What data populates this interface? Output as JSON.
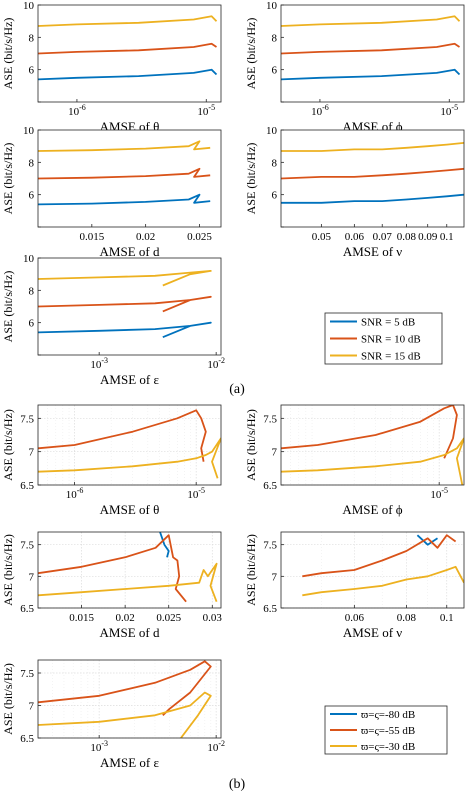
{
  "captions": {
    "a": "(a)",
    "b": "(b)"
  },
  "colors": {
    "blue": "#0072BD",
    "orange": "#D95319",
    "yellow": "#EDB120"
  },
  "chart_data": [
    {
      "type": "line",
      "panel": "a-theta",
      "ylabel": "ASE (bit/s/Hz)",
      "xlabel": "AMSE of θ",
      "xscale": "log",
      "xlim": [
        5e-07,
        1.3e-05
      ],
      "ylim": [
        4,
        10
      ],
      "xticks": [
        1e-06,
        1e-05
      ],
      "xticklabels": [
        "10^-6",
        "10^-5"
      ],
      "yticks": [
        4,
        6,
        8,
        10
      ],
      "yticklabels": [
        "",
        "6",
        "8",
        "10"
      ],
      "grid": false,
      "series": [
        {
          "color": "blue",
          "x": [
            5e-07,
            1e-06,
            3e-06,
            8e-06,
            1.1e-05,
            1.2e-05
          ],
          "y": [
            5.4,
            5.5,
            5.6,
            5.8,
            6.0,
            5.7
          ]
        },
        {
          "color": "orange",
          "x": [
            5e-07,
            1e-06,
            3e-06,
            8e-06,
            1.1e-05,
            1.2e-05
          ],
          "y": [
            7.0,
            7.1,
            7.2,
            7.4,
            7.6,
            7.4
          ]
        },
        {
          "color": "yellow",
          "x": [
            5e-07,
            1e-06,
            3e-06,
            8e-06,
            1.1e-05,
            1.2e-05
          ],
          "y": [
            8.7,
            8.8,
            8.9,
            9.1,
            9.3,
            9.0
          ]
        }
      ]
    },
    {
      "type": "line",
      "panel": "a-phi",
      "ylabel": "ASE (bit/s/Hz)",
      "xlabel": "AMSE of ϕ",
      "xscale": "log",
      "xlim": [
        5e-07,
        1.3e-05
      ],
      "ylim": [
        4,
        10
      ],
      "xticks": [
        1e-06,
        1e-05
      ],
      "xticklabels": [
        "10^-6",
        "10^-5"
      ],
      "yticks": [
        4,
        6,
        8,
        10
      ],
      "yticklabels": [
        "",
        "6",
        "8",
        "10"
      ],
      "grid": false,
      "series": [
        {
          "color": "blue",
          "x": [
            5e-07,
            1e-06,
            3e-06,
            8e-06,
            1.1e-05,
            1.2e-05
          ],
          "y": [
            5.4,
            5.5,
            5.6,
            5.8,
            6.0,
            5.7
          ]
        },
        {
          "color": "orange",
          "x": [
            5e-07,
            1e-06,
            3e-06,
            8e-06,
            1.1e-05,
            1.2e-05
          ],
          "y": [
            7.0,
            7.1,
            7.2,
            7.4,
            7.6,
            7.4
          ]
        },
        {
          "color": "yellow",
          "x": [
            5e-07,
            1e-06,
            3e-06,
            8e-06,
            1.1e-05,
            1.2e-05
          ],
          "y": [
            8.7,
            8.8,
            8.9,
            9.1,
            9.3,
            9.0
          ]
        }
      ]
    },
    {
      "type": "line",
      "panel": "a-d",
      "ylabel": "ASE (bit/s/Hz)",
      "xlabel": "AMSE of d",
      "xscale": "linear",
      "xlim": [
        0.01,
        0.027
      ],
      "ylim": [
        4,
        10
      ],
      "xticks": [
        0.015,
        0.02,
        0.025
      ],
      "xticklabels": [
        "0.015",
        "0.02",
        "0.025"
      ],
      "yticks": [
        4,
        6,
        8,
        10
      ],
      "yticklabels": [
        "",
        "6",
        "8",
        "10"
      ],
      "grid": false,
      "series": [
        {
          "color": "blue",
          "x": [
            0.01,
            0.015,
            0.02,
            0.024,
            0.025,
            0.0245,
            0.026
          ],
          "y": [
            5.4,
            5.45,
            5.55,
            5.7,
            6.0,
            5.5,
            5.6
          ]
        },
        {
          "color": "orange",
          "x": [
            0.01,
            0.015,
            0.02,
            0.024,
            0.025,
            0.0245,
            0.026
          ],
          "y": [
            7.0,
            7.05,
            7.15,
            7.3,
            7.6,
            7.1,
            7.2
          ]
        },
        {
          "color": "yellow",
          "x": [
            0.01,
            0.015,
            0.02,
            0.024,
            0.025,
            0.0245,
            0.026
          ],
          "y": [
            8.7,
            8.75,
            8.85,
            9.0,
            9.3,
            8.8,
            8.9
          ]
        }
      ]
    },
    {
      "type": "line",
      "panel": "a-nu",
      "ylabel": "ASE (bit/s/Hz)",
      "xlabel": "AMSE of ν",
      "xscale": "log",
      "xlim": [
        0.04,
        0.11
      ],
      "ylim": [
        4,
        10
      ],
      "xticks": [
        0.05,
        0.06,
        0.07,
        0.08,
        0.09,
        0.1
      ],
      "xticklabels": [
        "0.05",
        "0.06",
        "0.07",
        "0.08",
        "0.09",
        "0.1"
      ],
      "yticks": [
        4,
        6,
        8,
        10
      ],
      "yticklabels": [
        "",
        "6",
        "8",
        "10"
      ],
      "grid": false,
      "series": [
        {
          "color": "blue",
          "x": [
            0.04,
            0.05,
            0.06,
            0.07,
            0.08,
            0.09,
            0.1,
            0.11
          ],
          "y": [
            5.5,
            5.5,
            5.6,
            5.6,
            5.7,
            5.8,
            5.9,
            6.0
          ]
        },
        {
          "color": "orange",
          "x": [
            0.04,
            0.05,
            0.06,
            0.07,
            0.08,
            0.09,
            0.1,
            0.11
          ],
          "y": [
            7.0,
            7.1,
            7.1,
            7.2,
            7.3,
            7.4,
            7.5,
            7.6
          ]
        },
        {
          "color": "yellow",
          "x": [
            0.04,
            0.05,
            0.06,
            0.07,
            0.08,
            0.09,
            0.1,
            0.11
          ],
          "y": [
            8.7,
            8.7,
            8.8,
            8.8,
            8.9,
            9.0,
            9.1,
            9.2
          ]
        }
      ]
    },
    {
      "type": "line",
      "panel": "a-eps",
      "ylabel": "ASE (bit/s/Hz)",
      "xlabel": "AMSE of ε",
      "xscale": "log",
      "xlim": [
        0.0003,
        0.011
      ],
      "ylim": [
        4,
        10
      ],
      "xticks": [
        0.001,
        0.01
      ],
      "xticklabels": [
        "10^-3",
        "10^-2"
      ],
      "yticks": [
        4,
        6,
        8,
        10
      ],
      "yticklabels": [
        "",
        "6",
        "8",
        "10"
      ],
      "grid": false,
      "series": [
        {
          "color": "blue",
          "x": [
            0.0003,
            0.001,
            0.003,
            0.006,
            0.009,
            0.006,
            0.0035
          ],
          "y": [
            5.4,
            5.5,
            5.6,
            5.8,
            6.0,
            5.8,
            5.1
          ]
        },
        {
          "color": "orange",
          "x": [
            0.0003,
            0.001,
            0.003,
            0.006,
            0.009,
            0.006,
            0.0035
          ],
          "y": [
            7.0,
            7.1,
            7.2,
            7.4,
            7.6,
            7.4,
            6.7
          ]
        },
        {
          "color": "yellow",
          "x": [
            0.0003,
            0.001,
            0.003,
            0.006,
            0.009,
            0.006,
            0.0035
          ],
          "y": [
            8.7,
            8.8,
            8.9,
            9.1,
            9.2,
            9.0,
            8.3
          ]
        }
      ],
      "legend": {
        "placement": "right",
        "entries": [
          {
            "label": "SNR = 5 dB",
            "color": "blue"
          },
          {
            "label": "SNR = 10 dB",
            "color": "orange"
          },
          {
            "label": "SNR = 15 dB",
            "color": "yellow"
          }
        ]
      }
    },
    {
      "type": "line",
      "panel": "b-theta",
      "ylabel": "ASE (bit/s/Hz)",
      "xlabel": "AMSE of θ",
      "xscale": "log",
      "xlim": [
        5e-07,
        1.6e-05
      ],
      "ylim": [
        6.5,
        7.7
      ],
      "xticks": [
        1e-06,
        1e-05
      ],
      "xticklabels": [
        "10^-6",
        "10^-5"
      ],
      "yticks": [
        6.5,
        7,
        7.5
      ],
      "yticklabels": [
        "6.5",
        "7",
        "7.5"
      ],
      "grid": true,
      "series": [
        {
          "color": "orange",
          "x": [
            5e-07,
            1e-06,
            3e-06,
            7e-06,
            1e-05,
            1.1e-05,
            1.2e-05,
            1.1e-05,
            1.15e-05
          ],
          "y": [
            7.05,
            7.1,
            7.3,
            7.5,
            7.62,
            7.5,
            7.3,
            7.05,
            6.85
          ]
        },
        {
          "color": "yellow",
          "x": [
            5e-07,
            1e-06,
            3e-06,
            7e-06,
            1e-05,
            1.2e-05,
            1.35e-05,
            1.6e-05,
            1.35e-05,
            1.5e-05
          ],
          "y": [
            6.7,
            6.72,
            6.78,
            6.85,
            6.9,
            6.95,
            7.0,
            7.2,
            6.85,
            6.6
          ]
        }
      ]
    },
    {
      "type": "line",
      "panel": "b-phi",
      "ylabel": "ASE (bit/s/Hz)",
      "xlabel": "AMSE of ϕ",
      "xscale": "log",
      "xlim": [
        5e-07,
        1.6e-05
      ],
      "ylim": [
        6.5,
        7.7
      ],
      "xticks": [
        1e-05
      ],
      "xticklabels": [
        "10^-5"
      ],
      "yticks": [
        6.5,
        7,
        7.5
      ],
      "yticklabels": [
        "6.5",
        "7",
        "7.5"
      ],
      "grid": true,
      "series": [
        {
          "color": "orange",
          "x": [
            5e-07,
            1e-06,
            3e-06,
            7e-06,
            1.1e-05,
            1.3e-05,
            1.4e-05,
            1.3e-05,
            1.1e-05
          ],
          "y": [
            7.05,
            7.1,
            7.25,
            7.45,
            7.65,
            7.7,
            7.55,
            7.2,
            6.9
          ]
        },
        {
          "color": "yellow",
          "x": [
            5e-07,
            1e-06,
            3e-06,
            7e-06,
            1.1e-05,
            1.4e-05,
            1.6e-05,
            1.4e-05,
            1.55e-05
          ],
          "y": [
            6.7,
            6.72,
            6.78,
            6.85,
            6.95,
            7.05,
            7.2,
            6.9,
            6.5
          ]
        }
      ]
    },
    {
      "type": "line",
      "panel": "b-d",
      "ylabel": "ASE (bit/s/Hz)",
      "xlabel": "AMSE of d",
      "xscale": "linear",
      "xlim": [
        0.01,
        0.031
      ],
      "ylim": [
        6.5,
        7.7
      ],
      "xticks": [
        0.015,
        0.02,
        0.025,
        0.03
      ],
      "xticklabels": [
        "0.015",
        "0.02",
        "0.025",
        "0.03"
      ],
      "yticks": [
        6.5,
        7,
        7.5
      ],
      "yticklabels": [
        "6.5",
        "7",
        "7.5"
      ],
      "grid": true,
      "series": [
        {
          "color": "blue",
          "x": [
            0.024,
            0.0245,
            0.025,
            0.0248
          ],
          "y": [
            7.7,
            7.5,
            7.4,
            7.3
          ]
        },
        {
          "color": "orange",
          "x": [
            0.01,
            0.015,
            0.02,
            0.0235,
            0.025,
            0.0255,
            0.026,
            0.0262,
            0.0258,
            0.027
          ],
          "y": [
            7.05,
            7.15,
            7.3,
            7.45,
            7.65,
            7.3,
            7.25,
            7.0,
            6.8,
            6.6
          ]
        },
        {
          "color": "yellow",
          "x": [
            0.01,
            0.015,
            0.02,
            0.025,
            0.0285,
            0.029,
            0.0295,
            0.0305,
            0.0298,
            0.0305
          ],
          "y": [
            6.7,
            6.75,
            6.8,
            6.85,
            6.9,
            7.1,
            7.0,
            7.2,
            6.85,
            6.6
          ]
        }
      ]
    },
    {
      "type": "line",
      "panel": "b-nu",
      "ylabel": "ASE (bit/s/Hz)",
      "xlabel": "AMSE of ν",
      "xscale": "log",
      "xlim": [
        0.04,
        0.11
      ],
      "ylim": [
        6.5,
        7.7
      ],
      "xticks": [
        0.06,
        0.08,
        0.1
      ],
      "xticklabels": [
        "0.06",
        "0.08",
        "0.1"
      ],
      "yticks": [
        6.5,
        7,
        7.5
      ],
      "yticklabels": [
        "6.5",
        "7",
        "7.5"
      ],
      "grid": true,
      "series": [
        {
          "color": "blue",
          "x": [
            0.085,
            0.09,
            0.095
          ],
          "y": [
            7.65,
            7.5,
            7.6
          ]
        },
        {
          "color": "orange",
          "x": [
            0.045,
            0.05,
            0.06,
            0.07,
            0.08,
            0.09,
            0.095,
            0.1,
            0.105
          ],
          "y": [
            7.0,
            7.05,
            7.1,
            7.25,
            7.4,
            7.6,
            7.45,
            7.65,
            7.55
          ]
        },
        {
          "color": "yellow",
          "x": [
            0.045,
            0.05,
            0.06,
            0.07,
            0.08,
            0.09,
            0.1,
            0.105,
            0.11
          ],
          "y": [
            6.7,
            6.75,
            6.8,
            6.85,
            6.95,
            7.0,
            7.1,
            7.15,
            6.9
          ]
        }
      ]
    },
    {
      "type": "line",
      "panel": "b-eps",
      "ylabel": "ASE (bit/s/Hz)",
      "xlabel": "AMSE of ε",
      "xscale": "log",
      "xlim": [
        0.0003,
        0.011
      ],
      "ylim": [
        6.5,
        7.7
      ],
      "xticks": [
        0.001,
        0.01
      ],
      "xticklabels": [
        "10^-3",
        "10^-2"
      ],
      "yticks": [
        6.5,
        7,
        7.5
      ],
      "yticklabels": [
        "6.5",
        "7",
        "7.5"
      ],
      "grid": true,
      "series": [
        {
          "color": "orange",
          "x": [
            0.0003,
            0.001,
            0.003,
            0.006,
            0.008,
            0.009,
            0.006,
            0.004,
            0.0035
          ],
          "y": [
            7.05,
            7.15,
            7.35,
            7.55,
            7.68,
            7.6,
            7.2,
            6.95,
            6.85
          ]
        },
        {
          "color": "yellow",
          "x": [
            0.0003,
            0.001,
            0.003,
            0.006,
            0.008,
            0.009,
            0.007,
            0.005
          ],
          "y": [
            6.7,
            6.75,
            6.85,
            7.0,
            7.2,
            7.15,
            6.85,
            6.5
          ]
        }
      ],
      "legend": {
        "placement": "right",
        "entries": [
          {
            "label": "ϖ=ς=-80 dB",
            "color": "blue"
          },
          {
            "label": "ϖ=ς=-55 dB",
            "color": "orange"
          },
          {
            "label": "ϖ=ς=-30 dB",
            "color": "yellow"
          }
        ]
      }
    }
  ]
}
